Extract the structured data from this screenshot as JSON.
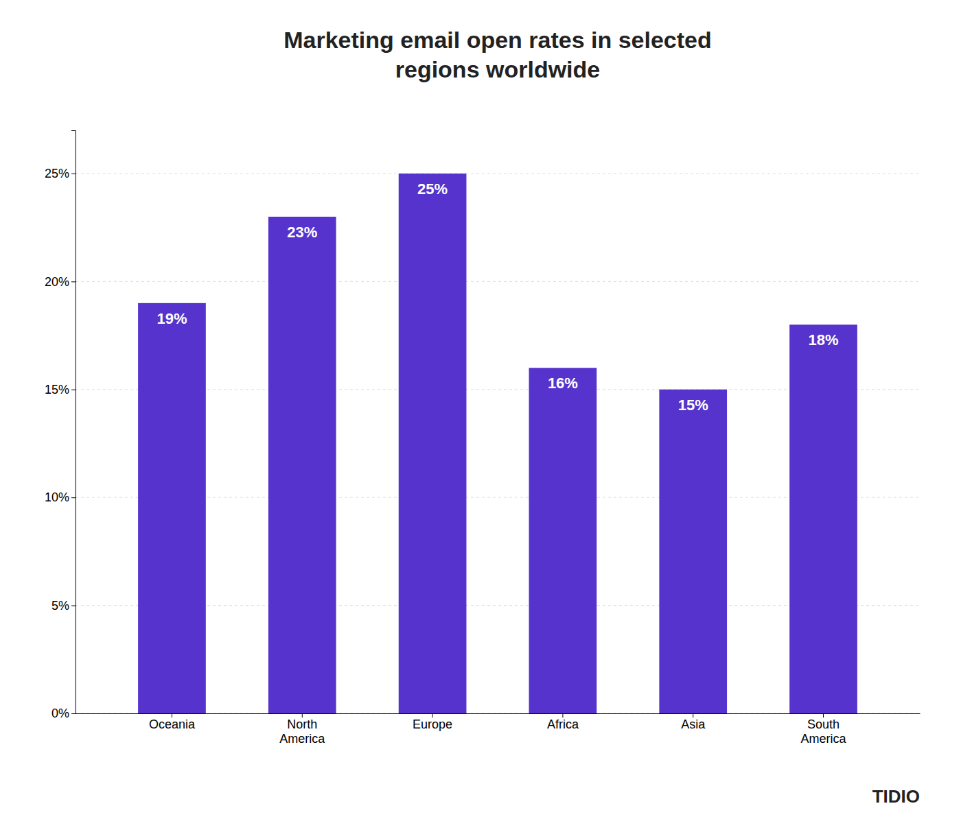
{
  "chart_data": {
    "type": "bar",
    "title": "Marketing email open rates in selected\nregions worldwide",
    "categories": [
      "Oceania",
      "North\nAmerica",
      "Europe",
      "Africa",
      "Asia",
      "South\nAmerica"
    ],
    "values": [
      19,
      23,
      25,
      16,
      15,
      18
    ],
    "value_labels": [
      "19%",
      "23%",
      "25%",
      "16%",
      "15%",
      "18%"
    ],
    "data_labels": true,
    "color": "#5533CC",
    "ylim": [
      0,
      27
    ],
    "yticks": [
      {
        "value": 0,
        "label": "0%"
      },
      {
        "value": 5,
        "label": "5%"
      },
      {
        "value": 10,
        "label": "10%"
      },
      {
        "value": 15,
        "label": "15%"
      },
      {
        "value": 20,
        "label": "20%"
      },
      {
        "value": 25,
        "label": "25%"
      }
    ],
    "grid": true,
    "annotations": [
      "TIDIO"
    ]
  }
}
